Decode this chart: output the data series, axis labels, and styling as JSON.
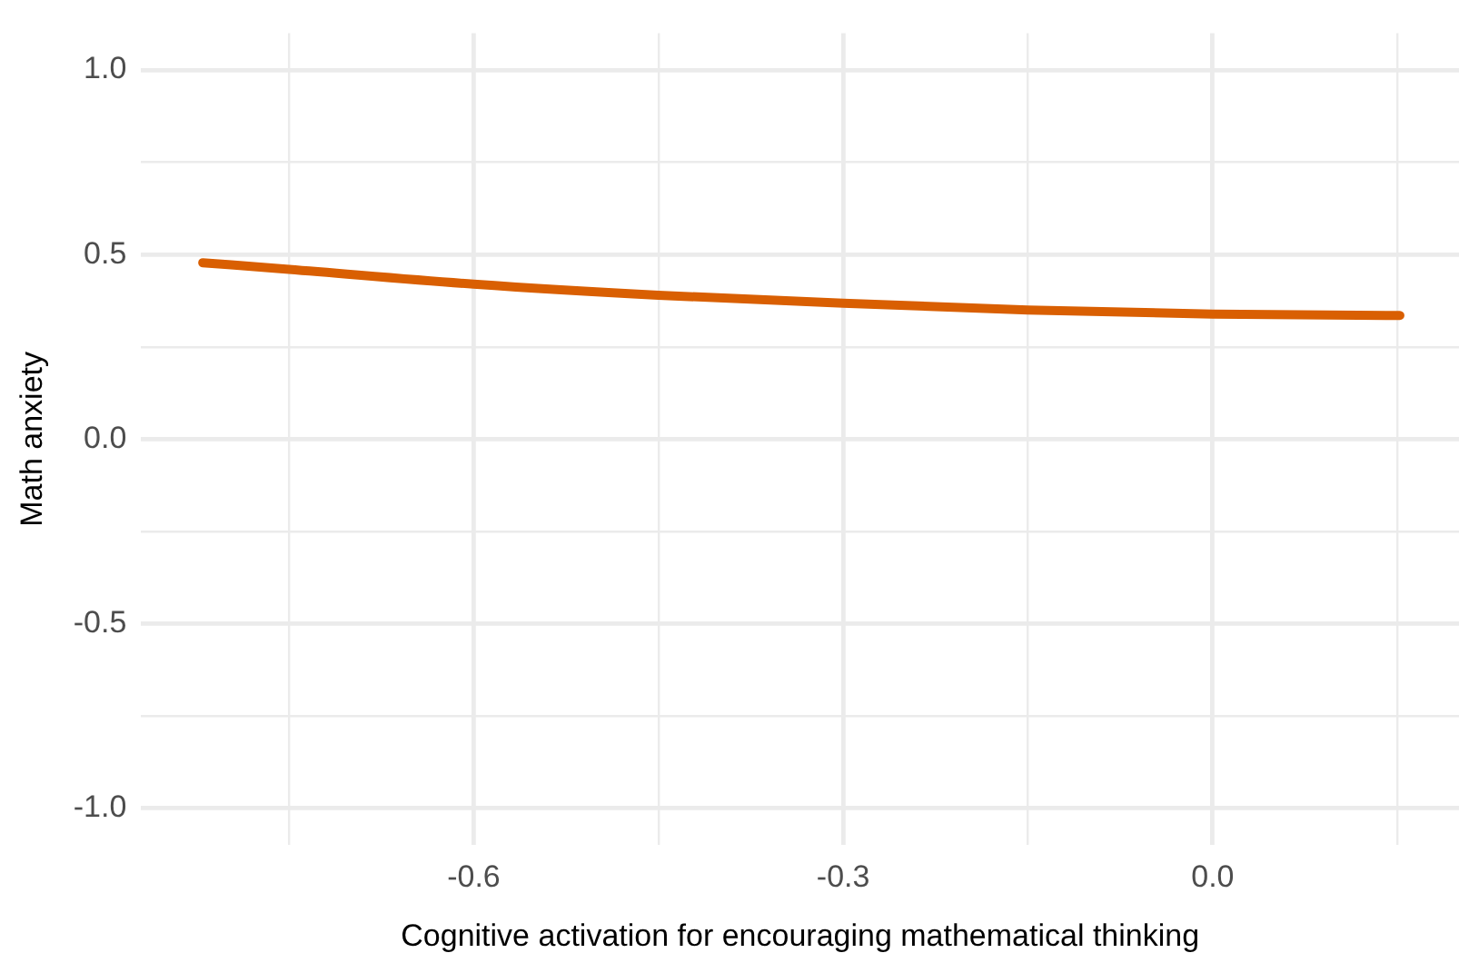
{
  "chart_data": {
    "type": "line",
    "xlabel": "Cognitive activation for encouraging mathematical thinking",
    "ylabel": "Math anxiety",
    "x": [
      -0.82,
      -0.75,
      -0.6,
      -0.45,
      -0.3,
      -0.15,
      0.0,
      0.152
    ],
    "series": [
      {
        "color": "#d95f02",
        "values": [
          0.478,
          0.46,
          0.42,
          0.39,
          0.368,
          0.35,
          0.339,
          0.335
        ]
      }
    ],
    "xlim": [
      -0.87,
      0.2
    ],
    "ylim": [
      -1.1,
      1.1
    ],
    "xticks": [
      {
        "value": -0.75,
        "label": null
      },
      -0.6,
      {
        "value": -0.45,
        "label": null
      },
      -0.3,
      {
        "value": -0.15,
        "label": null
      },
      {
        "value": 0.0,
        "label": "0.0"
      },
      {
        "value": 0.15,
        "label": null
      }
    ],
    "yticks": [
      {
        "value": -1.0,
        "label": "-1.0"
      },
      {
        "value": -0.75,
        "label": null
      },
      -0.5,
      {
        "value": -0.25,
        "label": null
      },
      {
        "value": 0.0,
        "label": "0.0"
      },
      {
        "value": 0.25,
        "label": null
      },
      0.5,
      {
        "value": 0.75,
        "label": null
      },
      {
        "value": 1.0,
        "label": "1.0"
      }
    ],
    "grid": true,
    "marker": "none",
    "line_style": "solid",
    "legend": false
  }
}
